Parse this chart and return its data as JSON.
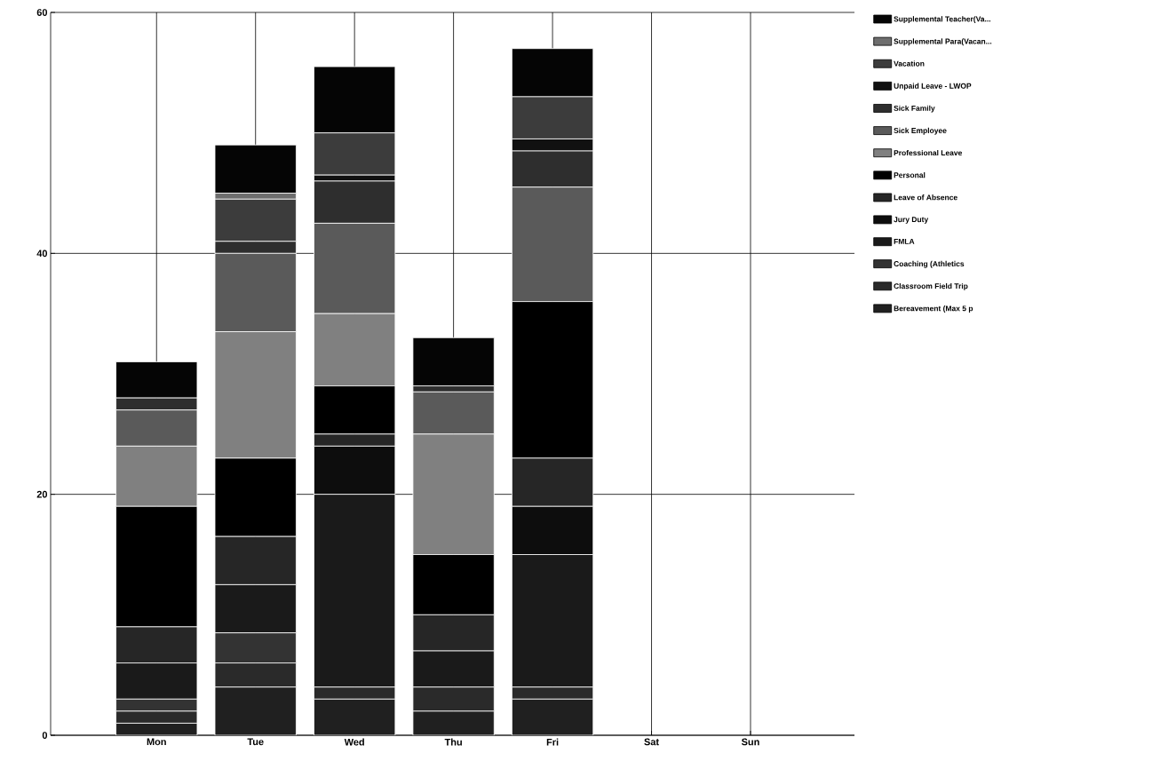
{
  "chart_data": {
    "type": "bar",
    "stacked": true,
    "categories": [
      "Mon",
      "Tue",
      "Wed",
      "Thu",
      "Fri",
      "Sat",
      "Sun"
    ],
    "series": [
      {
        "name": "Bereavement (Max 5 p",
        "color": "#202020",
        "values": [
          1,
          4,
          3,
          2,
          3,
          0,
          0
        ]
      },
      {
        "name": "Classroom Field Trip",
        "color": "#2a2a2a",
        "values": [
          1,
          2,
          1,
          2,
          1,
          0,
          0
        ]
      },
      {
        "name": "Coaching (Athletics",
        "color": "#333333",
        "values": [
          1,
          2.5,
          0,
          0,
          0,
          0,
          0
        ]
      },
      {
        "name": "FMLA",
        "color": "#1a1a1a",
        "values": [
          3,
          4,
          16,
          3,
          11,
          0,
          0
        ]
      },
      {
        "name": "Jury Duty",
        "color": "#0d0d0d",
        "values": [
          0,
          0,
          4,
          0,
          4,
          0,
          0
        ]
      },
      {
        "name": "Leave of Absence",
        "color": "#262626",
        "values": [
          3,
          4,
          1,
          3,
          4,
          0,
          0
        ]
      },
      {
        "name": "Personal",
        "color": "#000000",
        "values": [
          10,
          6.5,
          4,
          5,
          13,
          0,
          0
        ]
      },
      {
        "name": "Professional Leave",
        "color": "#808080",
        "values": [
          5,
          10.5,
          6,
          10,
          0,
          0,
          0
        ]
      },
      {
        "name": "Sick Employee",
        "color": "#5a5a5a",
        "values": [
          3,
          6.5,
          7.5,
          3.5,
          9.5,
          0,
          0
        ]
      },
      {
        "name": "Sick Family",
        "color": "#2e2e2e",
        "values": [
          1,
          1,
          3.5,
          0.5,
          3,
          0,
          0
        ]
      },
      {
        "name": "Unpaid Leave - LWOP",
        "color": "#111111",
        "values": [
          0,
          0,
          0.5,
          0,
          1,
          0,
          0
        ]
      },
      {
        "name": "Vacation",
        "color": "#3c3c3c",
        "values": [
          0,
          3.5,
          3.5,
          0,
          3.5,
          0,
          0
        ]
      },
      {
        "name": "Supplemental Para(Vacan...",
        "color": "#6e6e6e",
        "values": [
          0,
          0.5,
          0,
          0,
          0,
          0,
          0
        ]
      },
      {
        "name": "Supplemental Teacher(Va...",
        "color": "#050505",
        "values": [
          3,
          4,
          5.5,
          4,
          4,
          0,
          0
        ]
      }
    ],
    "ylim": [
      0,
      60
    ],
    "yticks": [
      0,
      20,
      40,
      60
    ],
    "grid": true,
    "legend": "right"
  }
}
